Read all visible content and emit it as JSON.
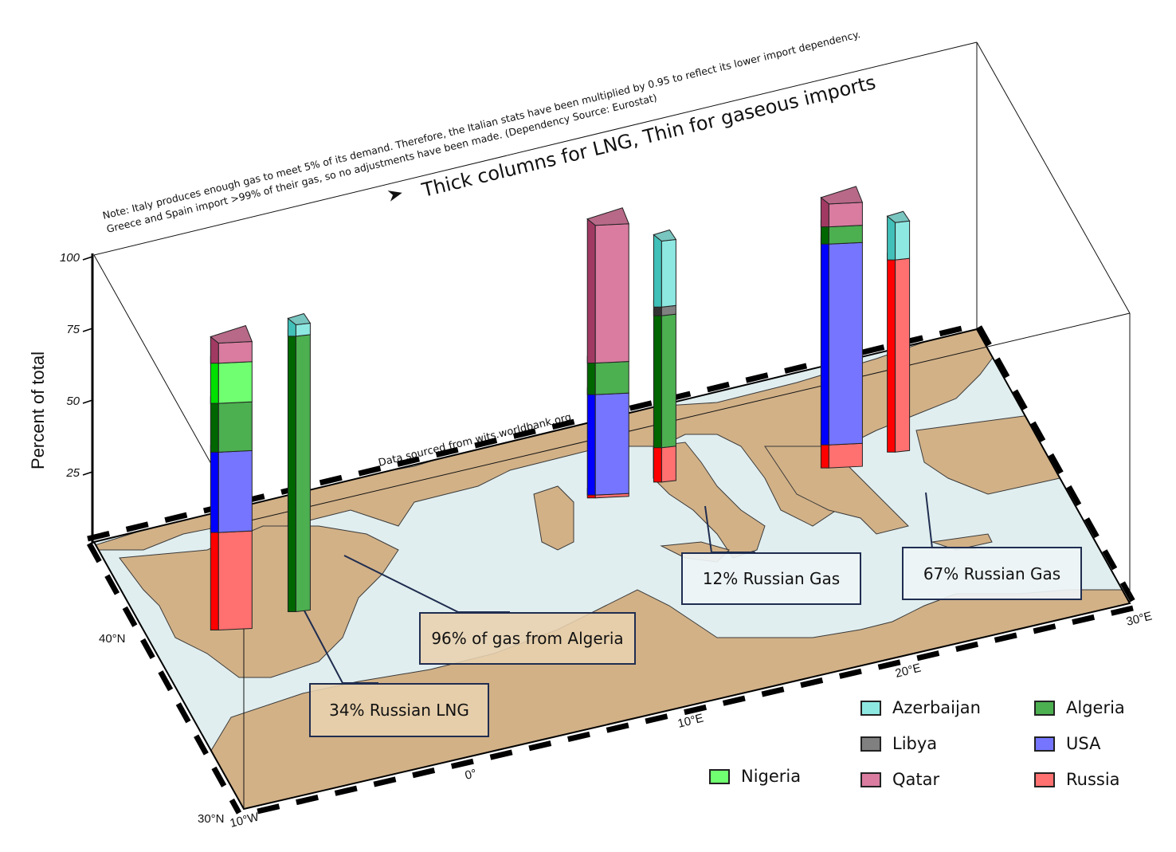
{
  "axis": {
    "ylabel": "Percent of total",
    "yticks": [
      "25",
      "50",
      "75",
      "100"
    ],
    "lat_ticks": [
      "40°N",
      "30°N"
    ],
    "lon_ticks": [
      "10°W",
      "0°",
      "10°E",
      "20°E",
      "30°E"
    ]
  },
  "annotations": {
    "title": "Thick columns for LNG, Thin for gaseous imports",
    "note_line1": "Note: Italy produces enough gas to meet 5% of its demand. Therefore, the Italian stats have been multiplied by 0.95 to reflect its lower import dependency.",
    "note_line2": "Greece and Spain import >99% of their gas, so no adjustments have been made. (Dependency Source: Eurostat)",
    "source": "Data sourced from wits.worldbank.org"
  },
  "callouts": {
    "spain_lng": "34% Russian LNG",
    "spain_gas": "96% of gas from Algeria",
    "italy_gas": "12% Russian Gas",
    "greece_gas": "67% Russian Gas"
  },
  "legend": [
    {
      "key": "azerbaijan",
      "label": "Azerbaijan",
      "color": "#8ee8e2"
    },
    {
      "key": "algeria",
      "label": "Algeria",
      "color": "#4caf50"
    },
    {
      "key": "libya",
      "label": "Libya",
      "color": "#808080"
    },
    {
      "key": "usa",
      "label": "USA",
      "color": "#7575ff"
    },
    {
      "key": "qatar",
      "label": "Qatar",
      "color": "#d97ca0"
    },
    {
      "key": "russia",
      "label": "Russia",
      "color": "#ff7070"
    },
    {
      "key": "nigeria",
      "label": "Nigeria",
      "color": "#70ff70"
    }
  ],
  "chart_data": {
    "type": "bar",
    "ylabel": "Percent of total",
    "ylim": [
      0,
      100
    ],
    "map_extent": {
      "lon": [
        -10,
        30
      ],
      "lat": [
        30,
        48
      ]
    },
    "columns": [
      {
        "country": "Spain",
        "kind": "LNG",
        "lon": -7,
        "lat": 41,
        "segments": [
          {
            "source": "Russia",
            "value": 34
          },
          {
            "source": "USA",
            "value": 28
          },
          {
            "source": "Algeria",
            "value": 17
          },
          {
            "source": "Nigeria",
            "value": 14
          },
          {
            "source": "Qatar",
            "value": 7
          }
        ]
      },
      {
        "country": "Spain",
        "kind": "Gas",
        "lon": -3.5,
        "lat": 41,
        "segments": [
          {
            "source": "Algeria",
            "value": 96
          },
          {
            "source": "Azerbaijan",
            "value": 4
          }
        ]
      },
      {
        "country": "Italy",
        "kind": "LNG",
        "lon": 11,
        "lat": 43.5,
        "segments": [
          {
            "source": "Russia",
            "value": 1
          },
          {
            "source": "USA",
            "value": 35
          },
          {
            "source": "Algeria",
            "value": 11
          },
          {
            "source": "Qatar",
            "value": 48
          }
        ]
      },
      {
        "country": "Italy",
        "kind": "Gas",
        "lon": 14,
        "lat": 43.5,
        "segments": [
          {
            "source": "Russia",
            "value": 12
          },
          {
            "source": "Algeria",
            "value": 46
          },
          {
            "source": "Libya",
            "value": 3
          },
          {
            "source": "Azerbaijan",
            "value": 23
          }
        ]
      },
      {
        "country": "Greece",
        "kind": "LNG",
        "lon": 21,
        "lat": 42,
        "segments": [
          {
            "source": "Russia",
            "value": 8
          },
          {
            "source": "USA",
            "value": 70
          },
          {
            "source": "Algeria",
            "value": 6
          },
          {
            "source": "Qatar",
            "value": 8
          }
        ]
      },
      {
        "country": "Greece",
        "kind": "Gas",
        "lon": 24,
        "lat": 42,
        "segments": [
          {
            "source": "Russia",
            "value": 67
          },
          {
            "source": "Azerbaijan",
            "value": 13
          }
        ]
      }
    ]
  }
}
